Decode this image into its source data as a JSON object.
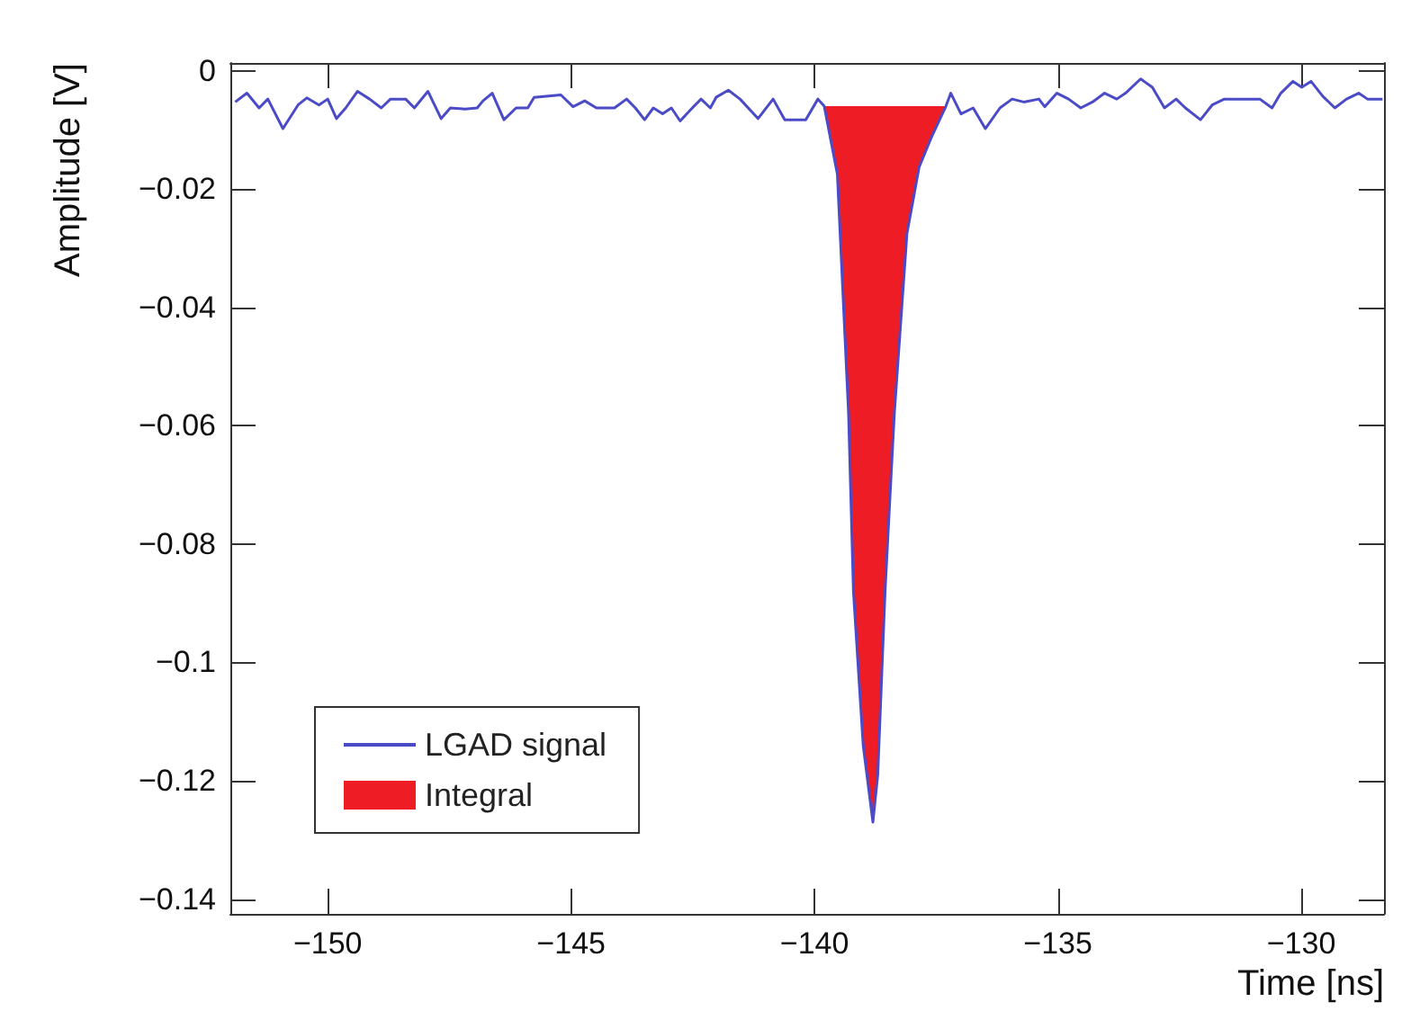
{
  "chart_data": {
    "type": "line",
    "xlabel": "Time [ns]",
    "ylabel": "Amplitude [V]",
    "xlim": [
      -152,
      -128.3
    ],
    "ylim": [
      -0.1425,
      0.0013
    ],
    "xticks": [
      {
        "value": -150,
        "label": "−150"
      },
      {
        "value": -145,
        "label": "−145"
      },
      {
        "value": -140,
        "label": "−140"
      },
      {
        "value": -135,
        "label": "−135"
      },
      {
        "value": -130,
        "label": "−130"
      }
    ],
    "yticks": [
      0,
      {
        "value": -0.02,
        "label": "−0.02"
      },
      {
        "value": -0.04,
        "label": "−0.04"
      },
      {
        "value": -0.06,
        "label": "−0.06"
      },
      {
        "value": -0.08,
        "label": "−0.08"
      },
      {
        "value": -0.1,
        "label": "−0.1"
      },
      {
        "value": -0.12,
        "label": "−0.12"
      },
      {
        "value": -0.14,
        "label": "−0.14"
      }
    ],
    "grid": false,
    "legend": "bottom left",
    "marker": "none",
    "line_style": "solid",
    "series": [
      {
        "name": "LGAD signal",
        "color": "#4b4bc8",
        "x": [
          -151.9,
          -151.66,
          -151.41,
          -151.23,
          -150.92,
          -150.61,
          -150.43,
          -150.18,
          -150.0,
          -149.82,
          -149.63,
          -149.39,
          -149.14,
          -148.9,
          -148.71,
          -148.4,
          -148.22,
          -147.94,
          -147.67,
          -147.48,
          -147.18,
          -146.93,
          -146.81,
          -146.62,
          -146.38,
          -146.13,
          -145.89,
          -145.76,
          -145.21,
          -144.96,
          -144.72,
          -144.48,
          -144.11,
          -143.86,
          -143.68,
          -143.49,
          -143.31,
          -143.12,
          -142.94,
          -142.76,
          -142.51,
          -142.33,
          -142.14,
          -142.02,
          -141.77,
          -141.53,
          -141.16,
          -140.85,
          -140.61,
          -140.18,
          -139.93,
          -139.8,
          -139.53,
          -139.3,
          -139.2,
          -139.0,
          -138.8,
          -138.7,
          -138.55,
          -138.36,
          -138.1,
          -137.85,
          -137.6,
          -137.3,
          -137.2,
          -136.99,
          -136.74,
          -136.49,
          -136.19,
          -135.94,
          -135.7,
          -135.39,
          -135.27,
          -135.02,
          -134.78,
          -134.53,
          -134.29,
          -134.04,
          -133.79,
          -133.61,
          -133.3,
          -133.06,
          -132.81,
          -132.57,
          -132.38,
          -132.07,
          -131.83,
          -131.58,
          -131.34,
          -130.85,
          -130.6,
          -130.42,
          -130.17,
          -129.99,
          -129.8,
          -129.56,
          -129.31,
          -129.07,
          -128.82,
          -128.64,
          -128.33
        ],
        "values": [
          -0.0053,
          -0.0038,
          -0.0063,
          -0.0048,
          -0.0098,
          -0.0058,
          -0.0046,
          -0.0058,
          -0.0048,
          -0.0081,
          -0.0063,
          -0.0035,
          -0.0048,
          -0.0063,
          -0.0048,
          -0.0048,
          -0.0063,
          -0.0035,
          -0.0081,
          -0.0063,
          -0.0065,
          -0.0063,
          -0.0051,
          -0.0038,
          -0.0083,
          -0.0063,
          -0.0063,
          -0.0045,
          -0.0041,
          -0.0061,
          -0.0051,
          -0.0063,
          -0.0063,
          -0.0048,
          -0.0063,
          -0.0083,
          -0.0063,
          -0.0073,
          -0.0063,
          -0.0085,
          -0.0063,
          -0.0048,
          -0.0063,
          -0.0045,
          -0.0033,
          -0.0048,
          -0.0081,
          -0.0048,
          -0.0083,
          -0.0083,
          -0.0048,
          -0.006,
          -0.0175,
          -0.058,
          -0.088,
          -0.114,
          -0.127,
          -0.119,
          -0.088,
          -0.058,
          -0.0275,
          -0.0163,
          -0.0113,
          -0.006,
          -0.0038,
          -0.0073,
          -0.0063,
          -0.0098,
          -0.0063,
          -0.0048,
          -0.0053,
          -0.0048,
          -0.0061,
          -0.0038,
          -0.0048,
          -0.0063,
          -0.0053,
          -0.0038,
          -0.0048,
          -0.0038,
          -0.0014,
          -0.0028,
          -0.0063,
          -0.0048,
          -0.0063,
          -0.0083,
          -0.0058,
          -0.0048,
          -0.0048,
          -0.0048,
          -0.0063,
          -0.0038,
          -0.0018,
          -0.0028,
          -0.0018,
          -0.0043,
          -0.0063,
          -0.0048,
          -0.0038,
          -0.0048,
          -0.0048
        ]
      },
      {
        "name": "Integral",
        "type": "area",
        "color": "#ee1c25",
        "x": [
          -139.8,
          -139.53,
          -139.3,
          -139.2,
          -139.0,
          -138.8,
          -138.7,
          -138.55,
          -138.36,
          -138.1,
          -137.85,
          -137.6,
          -137.3
        ],
        "values": [
          -0.006,
          -0.0175,
          -0.058,
          -0.088,
          -0.114,
          -0.127,
          -0.119,
          -0.088,
          -0.058,
          -0.0275,
          -0.0163,
          -0.0113,
          -0.006
        ]
      }
    ]
  }
}
